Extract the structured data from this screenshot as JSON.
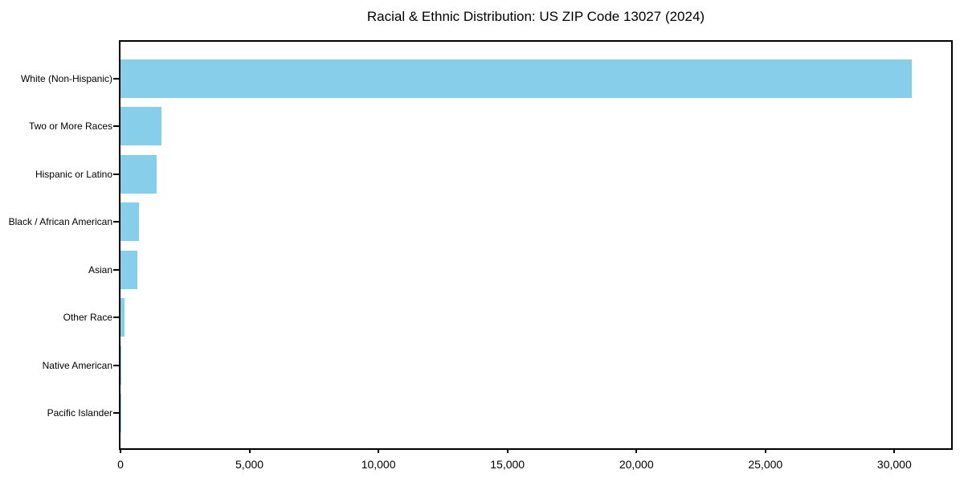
{
  "title": "Racial & Ethnic Distribution: US ZIP Code 13027 (2024)",
  "chart_data": {
    "type": "bar",
    "orientation": "horizontal",
    "title": "Racial & Ethnic Distribution: US ZIP Code 13027 (2024)",
    "xlabel": "",
    "ylabel": "",
    "categories": [
      "White (Non-Hispanic)",
      "Two or More Races",
      "Hispanic or Latino",
      "Black / African American",
      "Asian",
      "Other Race",
      "Native American",
      "Pacific Islander"
    ],
    "values": [
      30660,
      1580,
      1400,
      720,
      665,
      150,
      30,
      10
    ],
    "xlim": [
      0,
      32200
    ],
    "x_ticks": [
      0,
      5000,
      10000,
      15000,
      20000,
      25000,
      30000
    ],
    "x_tick_labels": [
      "0",
      "5,000",
      "10,000",
      "15,000",
      "20,000",
      "25,000",
      "30,000"
    ],
    "bar_color": "#87CEEB",
    "axis_color": "#000000",
    "text_color": "#000000",
    "background": "#ffffff",
    "grid": false,
    "legend": "none"
  }
}
